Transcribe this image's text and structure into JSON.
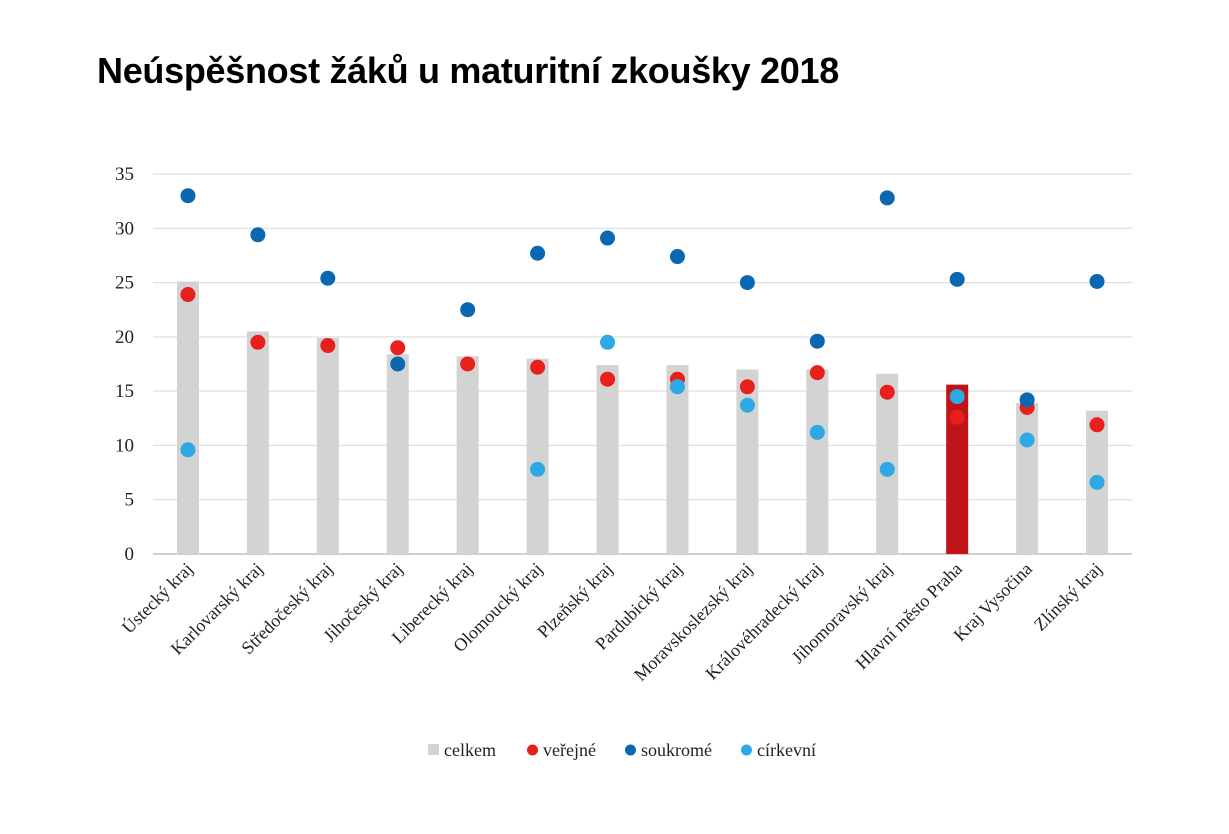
{
  "chart_data": {
    "type": "bar",
    "title": "Neúspěšnost žáků u maturitní zkoušky 2018",
    "xlabel": "",
    "ylabel": "",
    "ylim": [
      0,
      35
    ],
    "yticks": [
      0,
      5,
      10,
      15,
      20,
      25,
      30,
      35
    ],
    "grid": true,
    "legend_position": "bottom",
    "categories": [
      "Ústecký kraj",
      "Karlovarský kraj",
      "Středočeský kraj",
      "Jihočeský kraj",
      "Liberecký kraj",
      "Olomoucký kraj",
      "Plzeňský kraj",
      "Pardubický kraj",
      "Moravskoslezský kraj",
      "Královéhradecký kraj",
      "Jihomoravský kraj",
      "Hlavní město Praha",
      "Kraj Vysočina",
      "Zlínský kraj"
    ],
    "highlight_category": "Hlavní město Praha",
    "colors": {
      "bar": "#d3d3d3",
      "bar_highlight": "#c0141a",
      "verejne": "#e8201c",
      "soukrome": "#0a67b2",
      "cirkevni": "#2ea9e3",
      "grid": "#d9d9d9",
      "axis": "#bfbfbf"
    },
    "series": [
      {
        "name": "celkem",
        "kind": "bar",
        "values": [
          25.1,
          20.5,
          19.9,
          18.4,
          18.2,
          18.0,
          17.4,
          17.4,
          17.0,
          17.0,
          16.6,
          15.6,
          13.9,
          13.2
        ]
      },
      {
        "name": "veřejné",
        "kind": "dot",
        "color_key": "verejne",
        "values": [
          23.9,
          19.5,
          19.2,
          19.0,
          17.5,
          17.2,
          16.1,
          16.1,
          15.4,
          16.7,
          14.9,
          12.6,
          13.5,
          11.9
        ]
      },
      {
        "name": "soukromé",
        "kind": "dot",
        "color_key": "soukrome",
        "values": [
          33.0,
          29.4,
          25.4,
          17.5,
          22.5,
          27.7,
          29.1,
          27.4,
          25.0,
          19.6,
          32.8,
          25.3,
          14.2,
          25.1
        ]
      },
      {
        "name": "církevní",
        "kind": "dot",
        "color_key": "cirkevni",
        "values": [
          9.6,
          null,
          null,
          null,
          null,
          7.8,
          19.5,
          15.4,
          13.7,
          11.2,
          7.8,
          14.5,
          10.5,
          6.6
        ]
      }
    ]
  }
}
